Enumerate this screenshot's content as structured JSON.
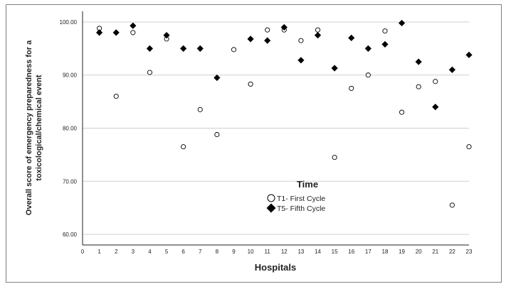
{
  "chart_data": {
    "type": "scatter",
    "xlabel": "Hospitals",
    "ylabel_lines": [
      "Overall score of emergency preparedness for a",
      "toxicological/chemical event"
    ],
    "xlim": [
      0,
      23
    ],
    "ylim": [
      58,
      102
    ],
    "x_ticks": [
      0,
      1,
      2,
      3,
      4,
      5,
      6,
      7,
      8,
      9,
      10,
      11,
      12,
      13,
      14,
      15,
      16,
      17,
      18,
      19,
      20,
      21,
      22,
      23
    ],
    "y_ticks": [
      60,
      70,
      80,
      90,
      100
    ],
    "y_tick_labels": [
      "60.00",
      "70.00",
      "80.00",
      "90.00",
      "100.00"
    ],
    "grid": "horizontal",
    "legend": {
      "title": "Time",
      "placement": "center",
      "entries": [
        "T1- First Cycle",
        "T5- Fifth Cycle"
      ]
    },
    "series": [
      {
        "name": "T1- First Cycle",
        "marker": "open-circle",
        "x": [
          1,
          2,
          3,
          4,
          5,
          6,
          7,
          8,
          9,
          10,
          11,
          12,
          13,
          14,
          15,
          16,
          17,
          18,
          19,
          20,
          21,
          22,
          23
        ],
        "y": [
          98.8,
          86.0,
          98.0,
          90.5,
          96.8,
          76.5,
          83.5,
          78.8,
          94.8,
          88.3,
          98.5,
          98.5,
          96.5,
          98.5,
          74.5,
          87.5,
          90.0,
          98.3,
          83.0,
          87.8,
          88.8,
          65.5,
          76.5
        ]
      },
      {
        "name": "T5- Fifth Cycle",
        "marker": "filled-diamond",
        "x": [
          1,
          2,
          3,
          4,
          5,
          6,
          7,
          8,
          10,
          11,
          12,
          13,
          14,
          15,
          16,
          17,
          18,
          19,
          20,
          21,
          22,
          23
        ],
        "y": [
          98.0,
          98.0,
          99.3,
          95.0,
          97.5,
          95.0,
          95.0,
          89.5,
          96.8,
          96.5,
          99.0,
          92.8,
          97.5,
          91.3,
          97.0,
          95.0,
          95.8,
          99.8,
          92.5,
          84.0,
          91.0,
          93.8
        ]
      }
    ]
  },
  "colors": {
    "frame": "#7f7f7f",
    "grid": "#cfcfcf",
    "axis": "#222222",
    "marker": "#000000"
  }
}
